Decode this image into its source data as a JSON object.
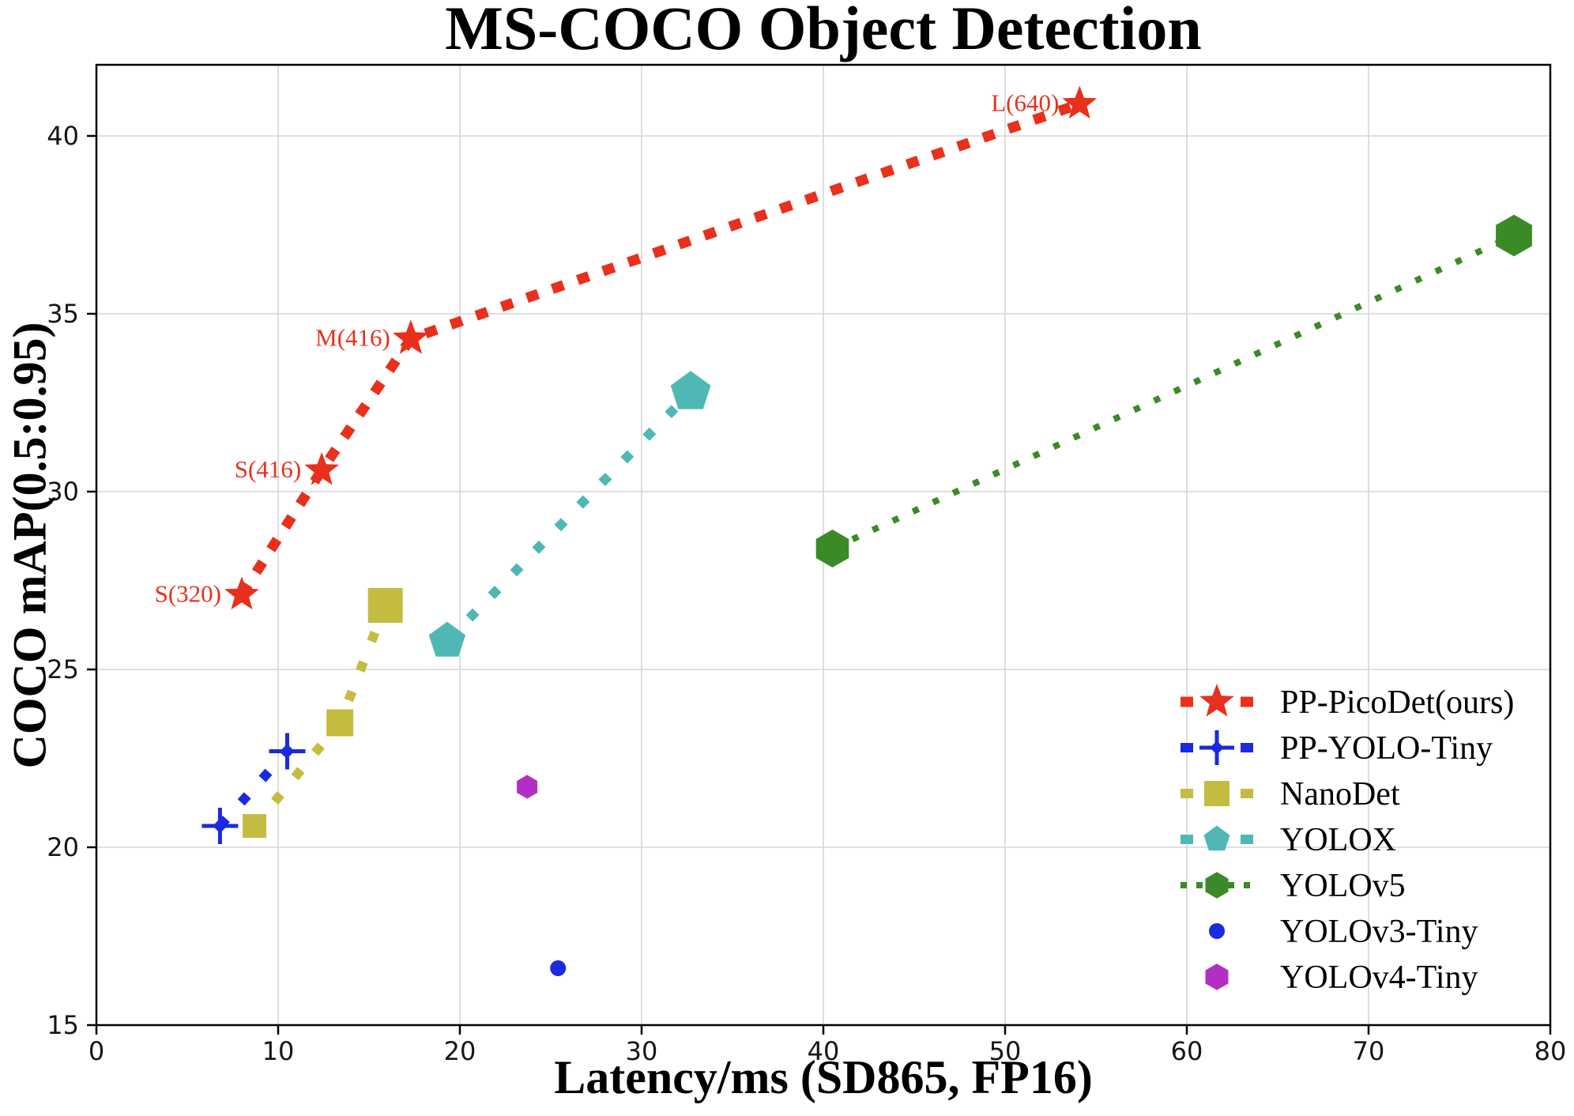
{
  "title": "MS-COCO Object Detection",
  "chart_data": {
    "type": "scatter",
    "title": "MS-COCO Object Detection",
    "xlabel": "Latency/ms (SD865, FP16)",
    "ylabel": "COCO mAP(0.5:0.95)",
    "xlim": [
      0,
      80
    ],
    "ylim": [
      15,
      42
    ],
    "xticks": [
      0,
      10,
      20,
      30,
      40,
      50,
      60,
      70,
      80
    ],
    "yticks": [
      15,
      20,
      25,
      30,
      35,
      40
    ],
    "grid": true,
    "grid_color": "#d6d6d6",
    "axis_color": "#000000",
    "background_color": "#ffffff",
    "legend_position": "lower right",
    "series": [
      {
        "name": "PP-PicoDet(ours)",
        "color": "#e8301d",
        "marker": "star",
        "line": "dotted-thick",
        "points": [
          {
            "x": 8.0,
            "y": 27.1,
            "label": "S(320)",
            "size": 44
          },
          {
            "x": 12.4,
            "y": 30.6,
            "label": "S(416)",
            "size": 44
          },
          {
            "x": 17.3,
            "y": 34.3,
            "label": "M(416)",
            "size": 46
          },
          {
            "x": 54.1,
            "y": 40.9,
            "label": "L(640)",
            "size": 44
          }
        ]
      },
      {
        "name": "PP-YOLO-Tiny",
        "color": "#1a2ae0",
        "marker": "plus",
        "line": "dotted",
        "points": [
          {
            "x": 6.8,
            "y": 20.6,
            "size": 46
          },
          {
            "x": 10.5,
            "y": 22.7,
            "size": 46
          }
        ]
      },
      {
        "name": "NanoDet",
        "color": "#c3bc40",
        "marker": "square",
        "line": "dotted",
        "points": [
          {
            "x": 8.7,
            "y": 20.6,
            "size": 30
          },
          {
            "x": 13.4,
            "y": 23.5,
            "size": 34
          },
          {
            "x": 15.9,
            "y": 26.8,
            "size": 44
          }
        ]
      },
      {
        "name": "YOLOX",
        "color": "#4fb8b5",
        "marker": "pentagon",
        "line": "dotted",
        "points": [
          {
            "x": 19.3,
            "y": 25.8,
            "size": 42
          },
          {
            "x": 32.7,
            "y": 32.8,
            "size": 46
          }
        ]
      },
      {
        "name": "YOLOv5",
        "color": "#3b8a28",
        "marker": "hexagon",
        "line": "dotted-fine",
        "points": [
          {
            "x": 40.5,
            "y": 28.4,
            "size": 40
          },
          {
            "x": 78.0,
            "y": 37.2,
            "size": 44
          }
        ]
      },
      {
        "name": "YOLOv3-Tiny",
        "color": "#1a2ae0",
        "marker": "circle",
        "line": "none",
        "points": [
          {
            "x": 25.4,
            "y": 16.6,
            "size": 20
          }
        ]
      },
      {
        "name": "YOLOv4-Tiny",
        "color": "#b32fc4",
        "marker": "hexagon",
        "line": "none",
        "points": [
          {
            "x": 23.7,
            "y": 21.7,
            "size": 25
          }
        ]
      }
    ]
  }
}
